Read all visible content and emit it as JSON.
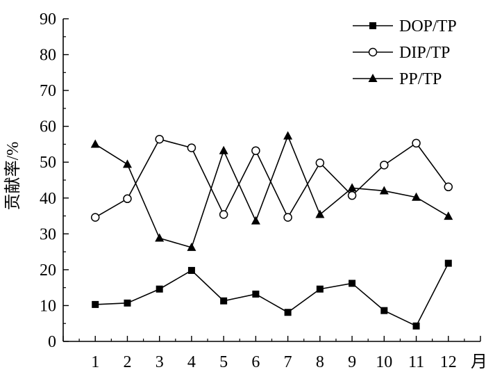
{
  "chart_data": {
    "type": "line",
    "ylabel": "贡献率/%",
    "xlabel": "月",
    "x": [
      1,
      2,
      3,
      4,
      5,
      6,
      7,
      8,
      9,
      10,
      11,
      12
    ],
    "xticks": [
      "1",
      "2",
      "3",
      "4",
      "5",
      "6",
      "7",
      "8",
      "9",
      "10",
      "11",
      "12"
    ],
    "xlim": [
      0,
      13
    ],
    "ylim": [
      0,
      90
    ],
    "yticks": [
      "0",
      "10",
      "20",
      "30",
      "40",
      "50",
      "60",
      "70",
      "80",
      "90"
    ],
    "grid": false,
    "legend_position": "top-right",
    "series": [
      {
        "name": "DOP/TP",
        "marker": "square-filled",
        "values": [
          10.3,
          10.7,
          14.6,
          19.8,
          11.3,
          13.2,
          8.1,
          14.6,
          16.2,
          8.6,
          4.3,
          21.8
        ]
      },
      {
        "name": "DIP/TP",
        "marker": "circle-open",
        "values": [
          34.6,
          39.8,
          56.4,
          54.0,
          35.4,
          53.2,
          34.6,
          49.8,
          40.7,
          49.2,
          55.3,
          43.1
        ]
      },
      {
        "name": "PP/TP",
        "marker": "triangle-filled",
        "values": [
          55.0,
          49.4,
          28.8,
          26.2,
          53.2,
          33.6,
          57.3,
          35.4,
          42.8,
          42.0,
          40.2,
          34.9
        ]
      }
    ]
  }
}
